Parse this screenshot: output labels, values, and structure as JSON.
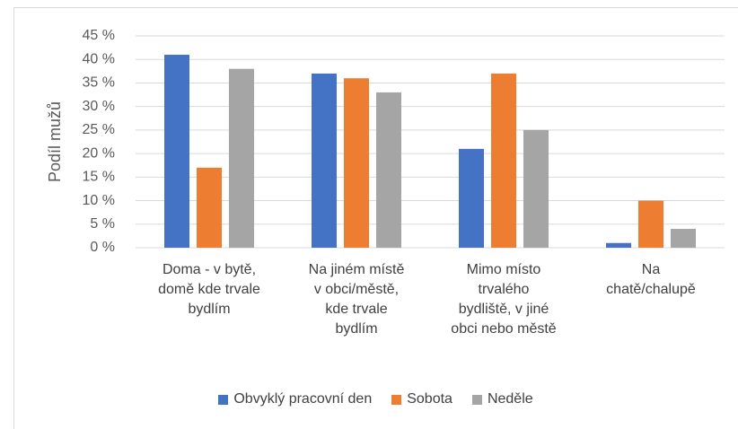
{
  "chart_data": {
    "type": "bar",
    "ylabel": "Podíl mužů",
    "categories": [
      "Doma - v bytě,\ndomě kde trvale\nbydlím",
      "Na jiném místě\nv obci/městě,\nkde trvale\nbydlím",
      "Mimo místo\ntrvalého\nbydliště, v jiné\nobci nebo městě",
      "Na\nchatě/chalupě"
    ],
    "series": [
      {
        "name": "Obvyklý pracovní den",
        "color": "#4472c4",
        "values": [
          41,
          37,
          21,
          1
        ]
      },
      {
        "name": "Sobota",
        "color": "#ed7d31",
        "values": [
          17,
          36,
          37,
          10
        ]
      },
      {
        "name": "Neděle",
        "color": "#a5a5a5",
        "values": [
          38,
          33,
          25,
          4
        ]
      }
    ],
    "ylim": [
      0,
      45
    ],
    "yticks": [
      {
        "value": 0,
        "label": "0 %"
      },
      {
        "value": 5,
        "label": "5 %"
      },
      {
        "value": 10,
        "label": "10 %"
      },
      {
        "value": 15,
        "label": "15 %"
      },
      {
        "value": 20,
        "label": "20 %"
      },
      {
        "value": 25,
        "label": "25 %"
      },
      {
        "value": 30,
        "label": "30 %"
      },
      {
        "value": 35,
        "label": "35 %"
      },
      {
        "value": 40,
        "label": "40 %"
      },
      {
        "value": 45,
        "label": "45 %"
      }
    ],
    "grid": true,
    "legend": "bottom"
  }
}
